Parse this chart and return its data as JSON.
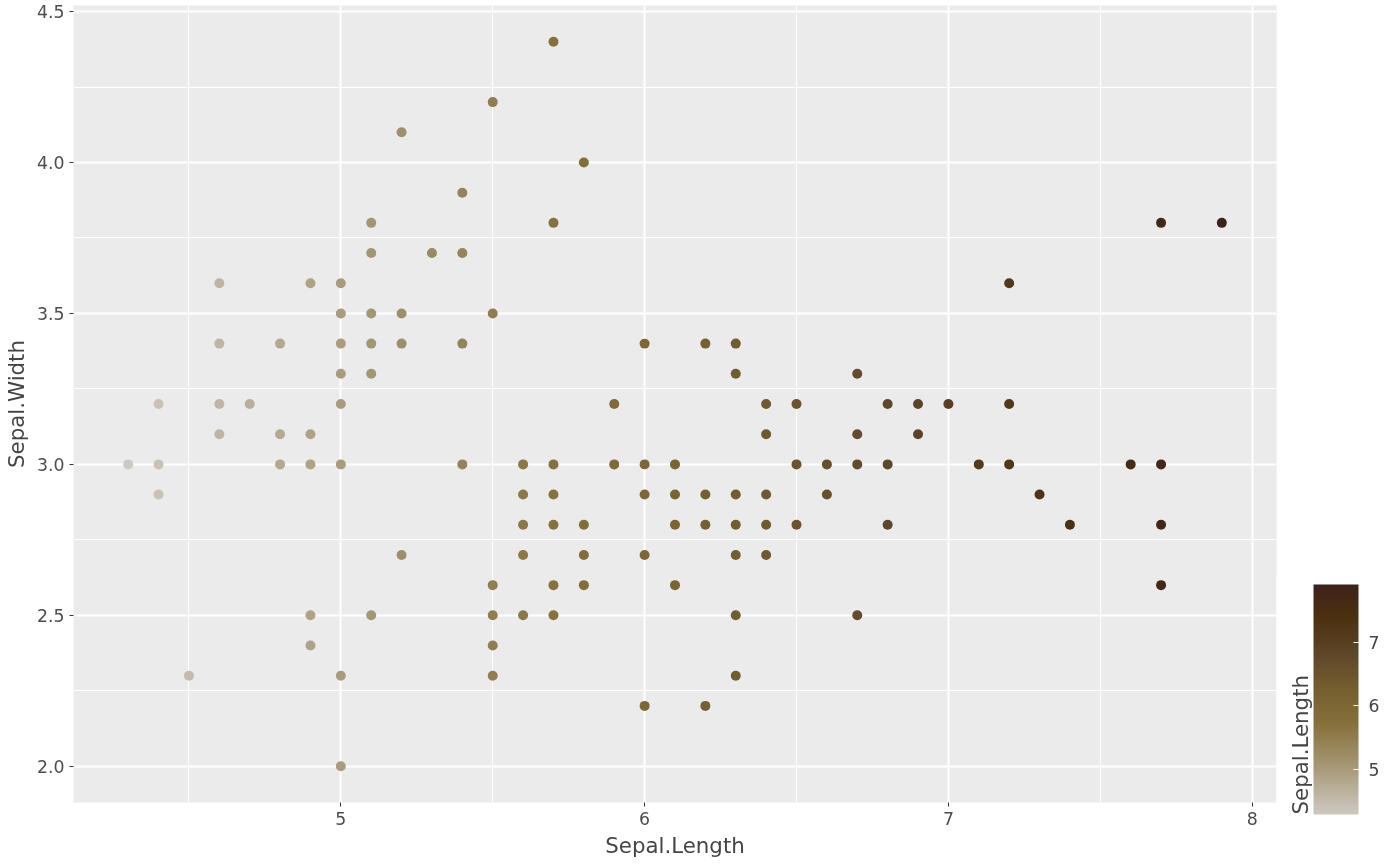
{
  "chart_data": {
    "type": "scatter",
    "xlabel": "Sepal.Length",
    "ylabel": "Sepal.Width",
    "clabel": "Sepal.Length",
    "x": [
      4.3,
      4.4,
      4.4,
      4.4,
      4.5,
      4.6,
      4.6,
      4.6,
      4.6,
      4.7,
      4.8,
      4.8,
      4.8,
      4.9,
      4.9,
      4.9,
      4.9,
      4.9,
      5.0,
      5.0,
      5.0,
      5.0,
      5.0,
      5.0,
      5.0,
      5.0,
      5.1,
      5.1,
      5.1,
      5.1,
      5.1,
      5.1,
      5.2,
      5.2,
      5.2,
      5.2,
      5.3,
      5.4,
      5.4,
      5.4,
      5.4,
      5.5,
      5.5,
      5.5,
      5.5,
      5.5,
      5.5,
      5.6,
      5.6,
      5.6,
      5.6,
      5.6,
      5.7,
      5.7,
      5.7,
      5.7,
      5.7,
      5.7,
      5.7,
      5.8,
      5.8,
      5.8,
      5.8,
      5.9,
      5.9,
      6.0,
      6.0,
      6.0,
      6.0,
      6.0,
      6.1,
      6.1,
      6.1,
      6.1,
      6.2,
      6.2,
      6.2,
      6.2,
      6.3,
      6.3,
      6.3,
      6.3,
      6.3,
      6.3,
      6.3,
      6.4,
      6.4,
      6.4,
      6.4,
      6.4,
      6.5,
      6.5,
      6.5,
      6.6,
      6.6,
      6.7,
      6.7,
      6.7,
      6.7,
      6.8,
      6.8,
      6.8,
      6.9,
      6.9,
      7.0,
      7.1,
      7.2,
      7.2,
      7.2,
      7.3,
      7.4,
      7.6,
      7.7,
      7.7,
      7.7,
      7.7,
      7.9
    ],
    "values": [
      3.0,
      2.9,
      3.0,
      3.2,
      2.3,
      3.1,
      3.2,
      3.4,
      3.6,
      3.2,
      3.0,
      3.1,
      3.4,
      2.4,
      2.5,
      3.0,
      3.1,
      3.6,
      2.0,
      2.3,
      3.0,
      3.2,
      3.3,
      3.4,
      3.5,
      3.6,
      2.5,
      3.3,
      3.4,
      3.5,
      3.7,
      3.8,
      2.7,
      3.4,
      3.5,
      4.1,
      3.7,
      3.0,
      3.4,
      3.7,
      3.9,
      2.3,
      2.4,
      2.5,
      2.6,
      3.5,
      4.2,
      2.5,
      2.7,
      2.8,
      2.9,
      3.0,
      2.5,
      2.6,
      2.8,
      2.9,
      3.0,
      3.8,
      4.4,
      2.6,
      2.7,
      2.8,
      4.0,
      3.0,
      3.2,
      2.2,
      2.7,
      2.9,
      3.0,
      3.4,
      2.6,
      2.8,
      2.9,
      3.0,
      2.2,
      2.8,
      2.9,
      3.4,
      2.3,
      2.5,
      2.7,
      2.8,
      2.9,
      3.3,
      3.4,
      2.7,
      2.8,
      2.9,
      3.1,
      3.2,
      2.8,
      3.0,
      3.2,
      2.9,
      3.0,
      2.5,
      3.0,
      3.1,
      3.3,
      2.8,
      3.0,
      3.2,
      3.1,
      3.2,
      3.2,
      3.0,
      3.0,
      3.2,
      3.6,
      2.9,
      2.8,
      3.0,
      2.6,
      2.8,
      3.0,
      3.8,
      3.8
    ],
    "cvalues": [
      4.3,
      4.4,
      4.4,
      4.4,
      4.5,
      4.6,
      4.6,
      4.6,
      4.6,
      4.7,
      4.8,
      4.8,
      4.8,
      4.9,
      4.9,
      4.9,
      4.9,
      4.9,
      5.0,
      5.0,
      5.0,
      5.0,
      5.0,
      5.0,
      5.0,
      5.0,
      5.1,
      5.1,
      5.1,
      5.1,
      5.1,
      5.1,
      5.2,
      5.2,
      5.2,
      5.2,
      5.3,
      5.4,
      5.4,
      5.4,
      5.4,
      5.5,
      5.5,
      5.5,
      5.5,
      5.5,
      5.5,
      5.6,
      5.6,
      5.6,
      5.6,
      5.6,
      5.7,
      5.7,
      5.7,
      5.7,
      5.7,
      5.7,
      5.7,
      5.8,
      5.8,
      5.8,
      5.8,
      5.9,
      5.9,
      6.0,
      6.0,
      6.0,
      6.0,
      6.0,
      6.1,
      6.1,
      6.1,
      6.1,
      6.2,
      6.2,
      6.2,
      6.2,
      6.3,
      6.3,
      6.3,
      6.3,
      6.3,
      6.3,
      6.3,
      6.4,
      6.4,
      6.4,
      6.4,
      6.4,
      6.5,
      6.5,
      6.5,
      6.6,
      6.6,
      6.7,
      6.7,
      6.7,
      6.7,
      6.8,
      6.8,
      6.8,
      6.9,
      6.9,
      7.0,
      7.1,
      7.2,
      7.2,
      7.2,
      7.3,
      7.4,
      7.6,
      7.7,
      7.7,
      7.7,
      7.7,
      7.9
    ],
    "xlim": [
      4.12,
      8.08
    ],
    "ylim": [
      1.88,
      4.52
    ],
    "xticks": [
      5,
      6,
      7,
      8
    ],
    "yticks": [
      {
        "value": 2,
        "label": "2.0"
      },
      {
        "value": 2.5,
        "label": "2.5"
      },
      {
        "value": 3,
        "label": "3.0"
      },
      {
        "value": 3.5,
        "label": "3.5"
      },
      {
        "value": 4,
        "label": "4.0"
      },
      {
        "value": 4.5,
        "label": "4.5"
      }
    ],
    "clim": [
      4.3,
      7.9
    ],
    "cticks": [
      5,
      6,
      7
    ],
    "grid": true,
    "marker": "circle"
  }
}
